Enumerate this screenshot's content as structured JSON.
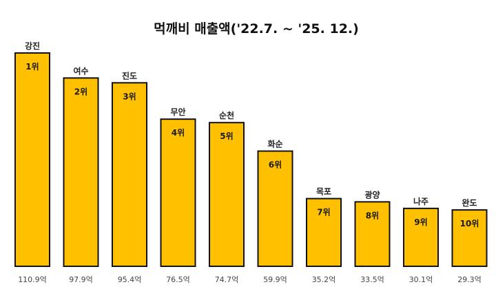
{
  "chart_data": {
    "type": "bar",
    "title": "먹깨비 매출액('22.7. ~ '25. 12.)",
    "categories": [
      "강진",
      "여수",
      "진도",
      "무안",
      "순천",
      "화순",
      "목포",
      "광양",
      "나주",
      "완도"
    ],
    "ranks": [
      "1위",
      "2위",
      "3위",
      "4위",
      "5위",
      "6위",
      "7위",
      "8위",
      "9위",
      "10위"
    ],
    "values": [
      110.9,
      97.9,
      95.4,
      76.5,
      74.7,
      59.9,
      35.2,
      33.5,
      30.1,
      29.3
    ],
    "value_labels": [
      "110.9억",
      "97.9억",
      "95.4억",
      "76.5억",
      "74.7억",
      "59.9억",
      "35.2억",
      "33.5억",
      "30.1억",
      "29.3억"
    ],
    "xlabel": "",
    "ylabel": "",
    "ylim": [
      0,
      110.9
    ],
    "grid": false,
    "colors": {
      "bar": "#FFC000",
      "border": "#111111"
    }
  }
}
